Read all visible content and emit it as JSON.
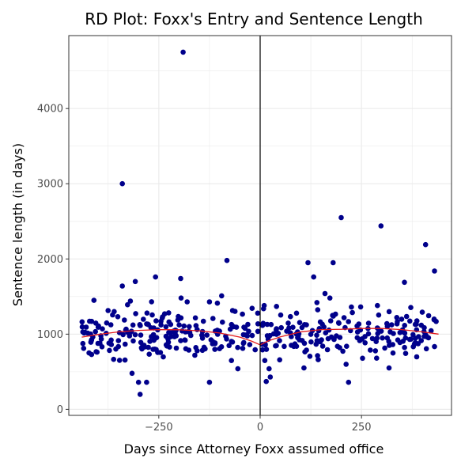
{
  "chart_data": {
    "type": "scatter",
    "title": "RD Plot: Foxx's Entry and Sentence Length",
    "xlabel": "Days since Attorney Foxx assumed office",
    "ylabel": "Sentence length (in days)",
    "xlim": [
      -472,
      472
    ],
    "ylim": [
      -80,
      4970
    ],
    "xticks": [
      -250,
      0,
      250
    ],
    "xtick_labels": [
      "−250",
      "0",
      "250"
    ],
    "yticks": [
      0,
      1000,
      2000,
      3000,
      4000
    ],
    "ytick_labels": [
      "0",
      "1000",
      "2000",
      "3000",
      "4000"
    ],
    "cutoff": 0,
    "grid": true,
    "colors": {
      "points": "#00008b",
      "fit": "#e31a1c",
      "cutoff": "#000000",
      "grid": "#ebebeb",
      "frame": "#333333"
    },
    "series": [
      {
        "type": "scatter",
        "points": [
          [
            -190,
            4750
          ],
          [
            -340,
            3000
          ],
          [
            -82,
            1980
          ],
          [
            -340,
            1640
          ],
          [
            -196,
            1740
          ],
          [
            -308,
            1700
          ],
          [
            -258,
            1760
          ],
          [
            -316,
            480
          ],
          [
            -300,
            360
          ],
          [
            -280,
            360
          ],
          [
            -296,
            200
          ],
          [
            -125,
            360
          ],
          [
            -55,
            540
          ],
          [
            -195,
            1480
          ],
          [
            -95,
            1510
          ],
          [
            -180,
            1430
          ],
          [
            -125,
            1430
          ],
          [
            -320,
            1440
          ],
          [
            -360,
            1300
          ],
          [
            -410,
            1450
          ]
        ]
      },
      {
        "type": "scatter",
        "points": [
          [
            200,
            2550
          ],
          [
            298,
            2440
          ],
          [
            408,
            2190
          ],
          [
            430,
            1840
          ],
          [
            118,
            1950
          ],
          [
            180,
            1950
          ],
          [
            132,
            1760
          ],
          [
            356,
            1690
          ],
          [
            160,
            1540
          ],
          [
            172,
            1480
          ],
          [
            225,
            1360
          ],
          [
            10,
            1380
          ],
          [
            15,
            370
          ],
          [
            25,
            430
          ],
          [
            218,
            360
          ],
          [
            212,
            600
          ],
          [
            318,
            550
          ],
          [
            108,
            550
          ],
          [
            22,
            540
          ],
          [
            140,
            1420
          ]
        ]
      }
    ],
    "fit": [
      {
        "x": [
          -440,
          -400,
          -350,
          -300,
          -250,
          -200,
          -150,
          -100,
          -50,
          -20,
          -1
        ],
        "y": [
          960,
          995,
          1030,
          1050,
          1060,
          1058,
          1045,
          1015,
          960,
          905,
          860
        ]
      },
      {
        "x": [
          1,
          20,
          50,
          100,
          150,
          200,
          250,
          300,
          350,
          400,
          440
        ],
        "y": [
          860,
          910,
          965,
          1030,
          1060,
          1065,
          1075,
          1075,
          1060,
          1030,
          1000
        ]
      }
    ]
  }
}
